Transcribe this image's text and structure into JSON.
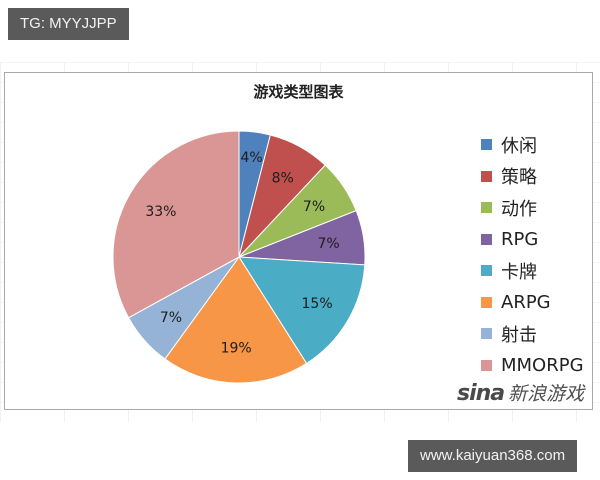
{
  "badges": {
    "top_left": "TG: MYYJJPP",
    "bottom_right": "www.kaiyuan368.com"
  },
  "watermark": {
    "logo": "sina",
    "text": "新浪游戏"
  },
  "chart_data": {
    "type": "pie",
    "title": "游戏类型图表",
    "xlabel": "",
    "ylabel": "",
    "legend_position": "right",
    "categories": [
      "休闲",
      "策略",
      "动作",
      "RPG",
      "卡牌",
      "ARPG",
      "射击",
      "MMORPG"
    ],
    "values": [
      4,
      8,
      7,
      7,
      15,
      19,
      7,
      33
    ],
    "labels": [
      "4%",
      "8%",
      "7%",
      "7%",
      "15%",
      "19%",
      "7%",
      "33%"
    ],
    "colors": [
      "#4f81bd",
      "#c0504d",
      "#9bbb59",
      "#8064a2",
      "#4bacc6",
      "#f79646",
      "#95b3d7",
      "#d99694"
    ],
    "start_angle_deg": 0,
    "direction": "clockwise"
  }
}
